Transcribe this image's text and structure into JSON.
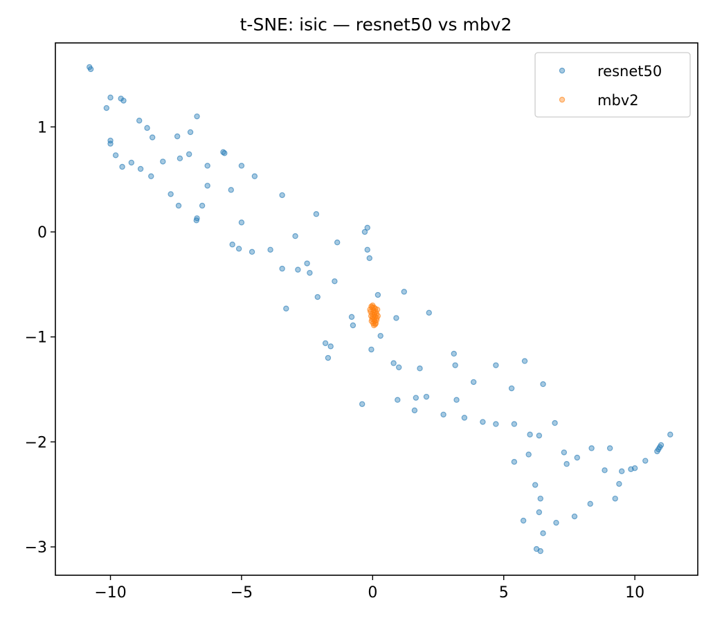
{
  "chart_data": {
    "type": "scatter",
    "title": "t-SNE: isic — resnet50 vs mbv2",
    "xlabel": "",
    "ylabel": "",
    "xlim": [
      -12.1,
      12.4
    ],
    "ylim": [
      -3.27,
      1.8
    ],
    "xticks": [
      -10,
      -5,
      0,
      5,
      10
    ],
    "yticks": [
      -3,
      -2,
      -1,
      0,
      1
    ],
    "xtick_labels": [
      "−10",
      "−5",
      "0",
      "5",
      "10"
    ],
    "ytick_labels": [
      "−3",
      "−2",
      "−1",
      "0",
      "1"
    ],
    "grid": false,
    "legend_position": "top-right",
    "series": [
      {
        "name": "resnet50",
        "color": "#1f77b4",
        "points": [
          [
            -10.8,
            1.57
          ],
          [
            -10.75,
            1.55
          ],
          [
            -10.0,
            1.28
          ],
          [
            -9.6,
            1.27
          ],
          [
            -9.5,
            1.25
          ],
          [
            -10.15,
            1.18
          ],
          [
            -8.9,
            1.06
          ],
          [
            -8.6,
            0.99
          ],
          [
            -8.4,
            0.9
          ],
          [
            -6.7,
            1.1
          ],
          [
            -6.95,
            0.95
          ],
          [
            -7.45,
            0.91
          ],
          [
            -10.0,
            0.87
          ],
          [
            -10.0,
            0.84
          ],
          [
            -9.8,
            0.73
          ],
          [
            -9.55,
            0.62
          ],
          [
            -9.2,
            0.66
          ],
          [
            -8.85,
            0.6
          ],
          [
            -8.45,
            0.53
          ],
          [
            -8.0,
            0.67
          ],
          [
            -7.35,
            0.7
          ],
          [
            -7.0,
            0.74
          ],
          [
            -5.7,
            0.76
          ],
          [
            -5.65,
            0.75
          ],
          [
            -6.3,
            0.63
          ],
          [
            -5.0,
            0.63
          ],
          [
            -4.5,
            0.53
          ],
          [
            -6.3,
            0.44
          ],
          [
            -5.4,
            0.4
          ],
          [
            -7.7,
            0.36
          ],
          [
            -7.4,
            0.25
          ],
          [
            -6.5,
            0.25
          ],
          [
            -6.7,
            0.13
          ],
          [
            -6.72,
            0.11
          ],
          [
            -5.0,
            0.09
          ],
          [
            -3.45,
            0.35
          ],
          [
            -2.15,
            0.17
          ],
          [
            -0.3,
            0.0
          ],
          [
            -0.2,
            0.04
          ],
          [
            -2.95,
            -0.04
          ],
          [
            -1.35,
            -0.1
          ],
          [
            -5.35,
            -0.12
          ],
          [
            -5.1,
            -0.16
          ],
          [
            -4.6,
            -0.19
          ],
          [
            -3.9,
            -0.17
          ],
          [
            -0.2,
            -0.17
          ],
          [
            -0.12,
            -0.25
          ],
          [
            -3.45,
            -0.35
          ],
          [
            -2.85,
            -0.36
          ],
          [
            -2.5,
            -0.3
          ],
          [
            -2.4,
            -0.39
          ],
          [
            -1.45,
            -0.47
          ],
          [
            0.2,
            -0.6
          ],
          [
            1.2,
            -0.57
          ],
          [
            -2.1,
            -0.62
          ],
          [
            -3.3,
            -0.73
          ],
          [
            2.15,
            -0.77
          ],
          [
            -0.8,
            -0.81
          ],
          [
            -0.75,
            -0.89
          ],
          [
            0.9,
            -0.82
          ],
          [
            0.3,
            -0.99
          ],
          [
            -1.8,
            -1.06
          ],
          [
            -1.6,
            -1.09
          ],
          [
            -1.7,
            -1.2
          ],
          [
            -0.05,
            -1.12
          ],
          [
            0.8,
            -1.25
          ],
          [
            1.0,
            -1.29
          ],
          [
            3.1,
            -1.16
          ],
          [
            3.15,
            -1.27
          ],
          [
            1.8,
            -1.3
          ],
          [
            4.7,
            -1.27
          ],
          [
            5.8,
            -1.23
          ],
          [
            3.85,
            -1.43
          ],
          [
            5.3,
            -1.49
          ],
          [
            6.5,
            -1.45
          ],
          [
            -0.4,
            -1.64
          ],
          [
            0.95,
            -1.6
          ],
          [
            1.65,
            -1.58
          ],
          [
            2.05,
            -1.57
          ],
          [
            3.2,
            -1.6
          ],
          [
            1.6,
            -1.7
          ],
          [
            2.7,
            -1.74
          ],
          [
            3.5,
            -1.77
          ],
          [
            4.2,
            -1.81
          ],
          [
            4.7,
            -1.83
          ],
          [
            5.4,
            -1.83
          ],
          [
            6.95,
            -1.82
          ],
          [
            6.0,
            -1.93
          ],
          [
            6.35,
            -1.94
          ],
          [
            7.3,
            -2.1
          ],
          [
            7.8,
            -2.15
          ],
          [
            7.4,
            -2.21
          ],
          [
            5.95,
            -2.12
          ],
          [
            5.4,
            -2.19
          ],
          [
            8.35,
            -2.06
          ],
          [
            9.05,
            -2.06
          ],
          [
            8.85,
            -2.27
          ],
          [
            9.5,
            -2.28
          ],
          [
            9.85,
            -2.26
          ],
          [
            10.0,
            -2.25
          ],
          [
            10.4,
            -2.18
          ],
          [
            10.85,
            -2.09
          ],
          [
            10.9,
            -2.07
          ],
          [
            10.95,
            -2.05
          ],
          [
            11.0,
            -2.03
          ],
          [
            11.35,
            -1.93
          ],
          [
            9.4,
            -2.4
          ],
          [
            9.25,
            -2.54
          ],
          [
            6.2,
            -2.41
          ],
          [
            6.4,
            -2.54
          ],
          [
            8.3,
            -2.59
          ],
          [
            6.35,
            -2.67
          ],
          [
            7.7,
            -2.71
          ],
          [
            7.0,
            -2.77
          ],
          [
            5.75,
            -2.75
          ],
          [
            6.5,
            -2.87
          ],
          [
            6.25,
            -3.02
          ],
          [
            6.4,
            -3.04
          ]
        ]
      },
      {
        "name": "mbv2",
        "color": "#ff7f0e",
        "points": [
          [
            -0.05,
            -0.71
          ],
          [
            0.0,
            -0.7
          ],
          [
            0.05,
            -0.72
          ],
          [
            0.1,
            -0.73
          ],
          [
            0.18,
            -0.74
          ],
          [
            -0.1,
            -0.74
          ],
          [
            -0.08,
            -0.76
          ],
          [
            0.12,
            -0.76
          ],
          [
            0.03,
            -0.75
          ],
          [
            -0.02,
            -0.78
          ],
          [
            0.15,
            -0.78
          ],
          [
            0.07,
            -0.79
          ],
          [
            -0.06,
            -0.8
          ],
          [
            0.1,
            -0.81
          ],
          [
            0.2,
            -0.8
          ],
          [
            -0.02,
            -0.83
          ],
          [
            0.05,
            -0.83
          ],
          [
            0.15,
            -0.84
          ],
          [
            -0.04,
            -0.85
          ],
          [
            0.08,
            -0.85
          ],
          [
            0.02,
            -0.87
          ],
          [
            0.12,
            -0.87
          ],
          [
            0.05,
            -0.89
          ],
          [
            0.1,
            -0.88
          ],
          [
            -0.01,
            -0.72
          ],
          [
            0.06,
            -0.77
          ],
          [
            0.16,
            -0.82
          ],
          [
            0.0,
            -0.81
          ]
        ]
      }
    ]
  }
}
